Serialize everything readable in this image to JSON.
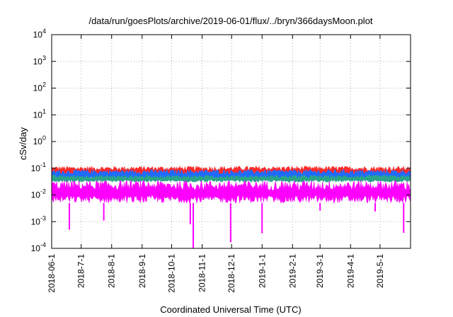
{
  "chart_data": {
    "type": "area",
    "title": "/data/run/goesPlots/archive/2019-06-01/flux/../bryn/366daysMoon.plot",
    "xlabel": "Coordinated Universal Time (UTC)",
    "ylabel": "cSv/day",
    "yscale": "log",
    "ylim": [
      0.0001,
      10000
    ],
    "xlim": [
      "2018-06-01",
      "2019-06-01"
    ],
    "grid": true,
    "x_tick_labels": [
      "2018-06-1",
      "2018-7-1",
      "2018-8-1",
      "2018-9-1",
      "2018-10-1",
      "2018-11-1",
      "2018-12-1",
      "2019-1-1",
      "2019-2-1",
      "2019-3-1",
      "2019-4-1",
      "2019-5-1"
    ],
    "y_ticks": [
      {
        "value": 0.0001,
        "mantissa": "10",
        "exp": "-4"
      },
      {
        "value": 0.001,
        "mantissa": "10",
        "exp": "-3"
      },
      {
        "value": 0.01,
        "mantissa": "10",
        "exp": "-2"
      },
      {
        "value": 0.1,
        "mantissa": "10",
        "exp": "-1"
      },
      {
        "value": 1,
        "mantissa": "10",
        "exp": "0"
      },
      {
        "value": 10,
        "mantissa": "10",
        "exp": "1"
      },
      {
        "value": 100,
        "mantissa": "10",
        "exp": "2"
      },
      {
        "value": 1000,
        "mantissa": "10",
        "exp": "3"
      },
      {
        "value": 10000,
        "mantissa": "10",
        "exp": "4"
      }
    ],
    "series": [
      {
        "color": "#ff2a2a",
        "typical_min": 0.05,
        "typical_max": 0.12
      },
      {
        "color": "#1f6bff",
        "typical_min": 0.035,
        "typical_max": 0.09
      },
      {
        "color": "#2aa58a",
        "typical_min": 0.03,
        "typical_max": 0.055
      },
      {
        "color": "#ff00ff",
        "typical_min": 0.005,
        "typical_max": 0.035
      }
    ],
    "dips": [
      {
        "date": "2018-06-19",
        "value": 0.0005
      },
      {
        "date": "2018-07-24",
        "value": 0.0011
      },
      {
        "date": "2018-10-20",
        "value": 0.0008
      },
      {
        "date": "2018-10-23",
        "value": 0.0001
      },
      {
        "date": "2018-11-30",
        "value": 0.00017
      },
      {
        "date": "2019-01-01",
        "value": 0.00037
      },
      {
        "date": "2019-03-01",
        "value": 0.0026
      },
      {
        "date": "2019-04-26",
        "value": 0.0024
      },
      {
        "date": "2019-05-25",
        "value": 0.00038
      }
    ]
  }
}
